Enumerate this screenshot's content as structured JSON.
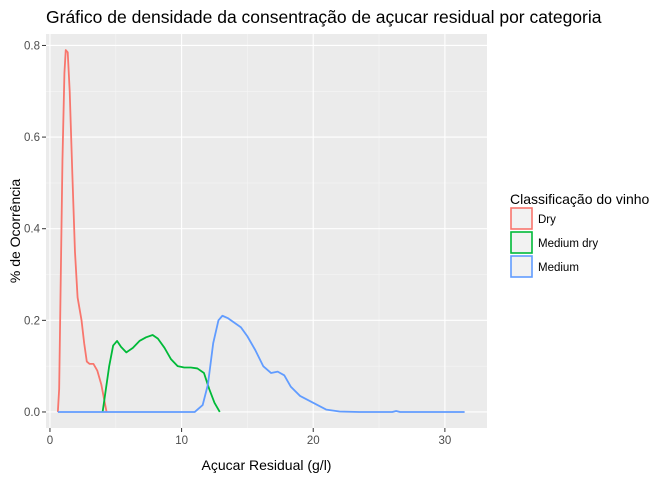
{
  "chart_data": {
    "type": "line",
    "title": "Gráfico de densidade da consentração de açucar residual por categoria",
    "xlabel": "Açucar Residual (g/l)",
    "ylabel": "% de Ocorrência",
    "xlim": [
      -0.3,
      33.2
    ],
    "ylim": [
      -0.035,
      0.825
    ],
    "x_ticks": [
      0,
      10,
      20,
      30
    ],
    "y_ticks": [
      0.0,
      0.2,
      0.4,
      0.6,
      0.8
    ],
    "x_tick_labels": [
      "0",
      "10",
      "20",
      "30"
    ],
    "y_tick_labels": [
      "0.0",
      "0.2",
      "0.4",
      "0.6",
      "0.8"
    ],
    "grid": true,
    "legend": {
      "title": "Classificação do vinho",
      "position": "right"
    },
    "series": [
      {
        "name": "Dry",
        "color": "#F8766D",
        "points": [
          [
            0.6,
            0.0
          ],
          [
            0.7,
            0.05
          ],
          [
            0.8,
            0.25
          ],
          [
            0.95,
            0.55
          ],
          [
            1.1,
            0.74
          ],
          [
            1.2,
            0.79
          ],
          [
            1.35,
            0.785
          ],
          [
            1.5,
            0.7
          ],
          [
            1.7,
            0.52
          ],
          [
            1.9,
            0.35
          ],
          [
            2.1,
            0.25
          ],
          [
            2.4,
            0.2
          ],
          [
            2.6,
            0.15
          ],
          [
            2.8,
            0.11
          ],
          [
            3.0,
            0.105
          ],
          [
            3.3,
            0.105
          ],
          [
            3.6,
            0.09
          ],
          [
            3.9,
            0.06
          ],
          [
            4.1,
            0.03
          ],
          [
            4.3,
            0.0
          ]
        ]
      },
      {
        "name": "Medium dry",
        "color": "#00BA38",
        "points": [
          [
            4.0,
            0.0
          ],
          [
            4.2,
            0.04
          ],
          [
            4.5,
            0.1
          ],
          [
            4.8,
            0.145
          ],
          [
            5.1,
            0.155
          ],
          [
            5.4,
            0.142
          ],
          [
            5.8,
            0.13
          ],
          [
            6.3,
            0.14
          ],
          [
            6.8,
            0.155
          ],
          [
            7.3,
            0.163
          ],
          [
            7.8,
            0.168
          ],
          [
            8.2,
            0.16
          ],
          [
            8.7,
            0.14
          ],
          [
            9.2,
            0.115
          ],
          [
            9.7,
            0.1
          ],
          [
            10.2,
            0.097
          ],
          [
            10.7,
            0.097
          ],
          [
            11.2,
            0.095
          ],
          [
            11.7,
            0.085
          ],
          [
            12.1,
            0.05
          ],
          [
            12.5,
            0.02
          ],
          [
            12.9,
            0.0
          ]
        ]
      },
      {
        "name": "Medium",
        "color": "#619CFF",
        "points": [
          [
            0.6,
            0.0
          ],
          [
            11.0,
            0.0
          ],
          [
            11.6,
            0.015
          ],
          [
            12.0,
            0.06
          ],
          [
            12.4,
            0.15
          ],
          [
            12.8,
            0.2
          ],
          [
            13.1,
            0.21
          ],
          [
            13.5,
            0.205
          ],
          [
            14.0,
            0.195
          ],
          [
            14.5,
            0.185
          ],
          [
            15.0,
            0.165
          ],
          [
            15.6,
            0.135
          ],
          [
            16.2,
            0.1
          ],
          [
            16.8,
            0.085
          ],
          [
            17.3,
            0.088
          ],
          [
            17.8,
            0.08
          ],
          [
            18.3,
            0.055
          ],
          [
            19.0,
            0.035
          ],
          [
            20.0,
            0.02
          ],
          [
            21.0,
            0.005
          ],
          [
            22.0,
            0.001
          ],
          [
            23.5,
            0.0
          ],
          [
            26.0,
            0.0
          ],
          [
            26.3,
            0.002
          ],
          [
            26.6,
            0.0
          ],
          [
            31.5,
            0.0
          ]
        ]
      }
    ]
  }
}
